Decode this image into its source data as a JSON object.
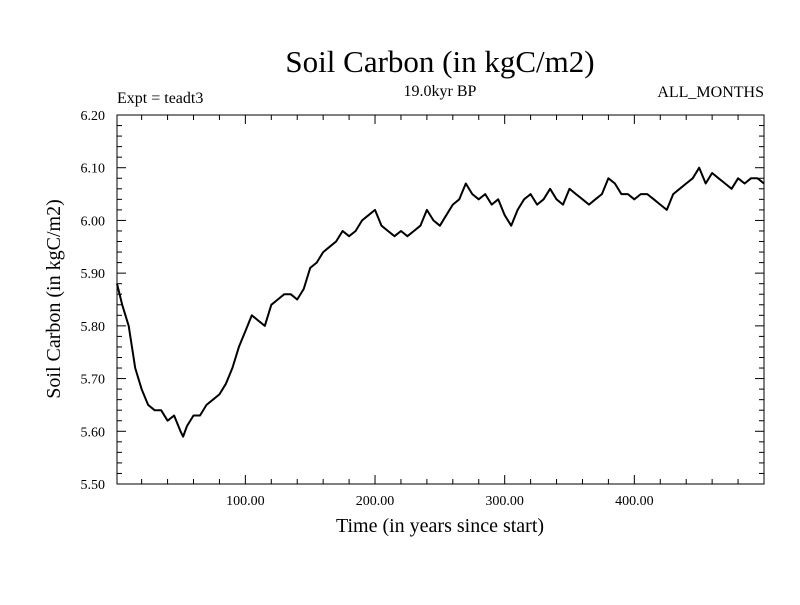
{
  "chart_data": {
    "type": "line",
    "title": "Soil Carbon (in kgC/m2)",
    "subtitle": "19.0kyr BP",
    "experiment_label": "Expt = teadt3",
    "period_label": "ALL_MONTHS",
    "xlabel": "Time (in years since start)",
    "ylabel": "Soil Carbon (in kgC/m2)",
    "xlim": [
      1,
      500
    ],
    "ylim": [
      5.5,
      6.2
    ],
    "x_ticks": [
      100,
      200,
      300,
      400
    ],
    "x_tick_labels": [
      "100.00",
      "200.00",
      "300.00",
      "400.00"
    ],
    "y_ticks": [
      5.5,
      5.6,
      5.7,
      5.8,
      5.9,
      6.0,
      6.1,
      6.2
    ],
    "y_tick_labels": [
      "5.50",
      "5.60",
      "5.70",
      "5.80",
      "5.90",
      "6.00",
      "6.10",
      "6.20"
    ],
    "grid": false,
    "line_color": "#000000",
    "series": [
      {
        "name": "Soil Carbon",
        "x": [
          1,
          5,
          10,
          15,
          20,
          25,
          30,
          35,
          40,
          45,
          50,
          52,
          55,
          60,
          65,
          70,
          75,
          80,
          85,
          90,
          95,
          100,
          105,
          110,
          115,
          120,
          125,
          130,
          135,
          140,
          145,
          150,
          155,
          160,
          165,
          170,
          175,
          180,
          185,
          190,
          195,
          200,
          205,
          210,
          215,
          220,
          225,
          230,
          235,
          240,
          245,
          250,
          255,
          260,
          265,
          270,
          275,
          280,
          285,
          290,
          295,
          300,
          305,
          310,
          315,
          320,
          325,
          330,
          335,
          340,
          345,
          350,
          355,
          360,
          365,
          370,
          375,
          380,
          385,
          390,
          395,
          400,
          405,
          410,
          415,
          420,
          425,
          430,
          435,
          440,
          445,
          450,
          455,
          460,
          465,
          470,
          475,
          480,
          485,
          490,
          495,
          500
        ],
        "values": [
          5.88,
          5.84,
          5.8,
          5.72,
          5.68,
          5.65,
          5.64,
          5.64,
          5.62,
          5.63,
          5.6,
          5.59,
          5.61,
          5.63,
          5.63,
          5.65,
          5.66,
          5.67,
          5.69,
          5.72,
          5.76,
          5.79,
          5.82,
          5.81,
          5.8,
          5.84,
          5.85,
          5.86,
          5.86,
          5.85,
          5.87,
          5.91,
          5.92,
          5.94,
          5.95,
          5.96,
          5.98,
          5.97,
          5.98,
          6.0,
          6.01,
          6.02,
          5.99,
          5.98,
          5.97,
          5.98,
          5.97,
          5.98,
          5.99,
          6.02,
          6.0,
          5.99,
          6.01,
          6.03,
          6.04,
          6.07,
          6.05,
          6.04,
          6.05,
          6.03,
          6.04,
          6.01,
          5.99,
          6.02,
          6.04,
          6.05,
          6.03,
          6.04,
          6.06,
          6.04,
          6.03,
          6.06,
          6.05,
          6.04,
          6.03,
          6.04,
          6.05,
          6.08,
          6.07,
          6.05,
          6.05,
          6.04,
          6.05,
          6.05,
          6.04,
          6.03,
          6.02,
          6.05,
          6.06,
          6.07,
          6.08,
          6.1,
          6.07,
          6.09,
          6.08,
          6.07,
          6.06,
          6.08,
          6.07,
          6.08,
          6.08,
          6.07
        ]
      }
    ]
  }
}
